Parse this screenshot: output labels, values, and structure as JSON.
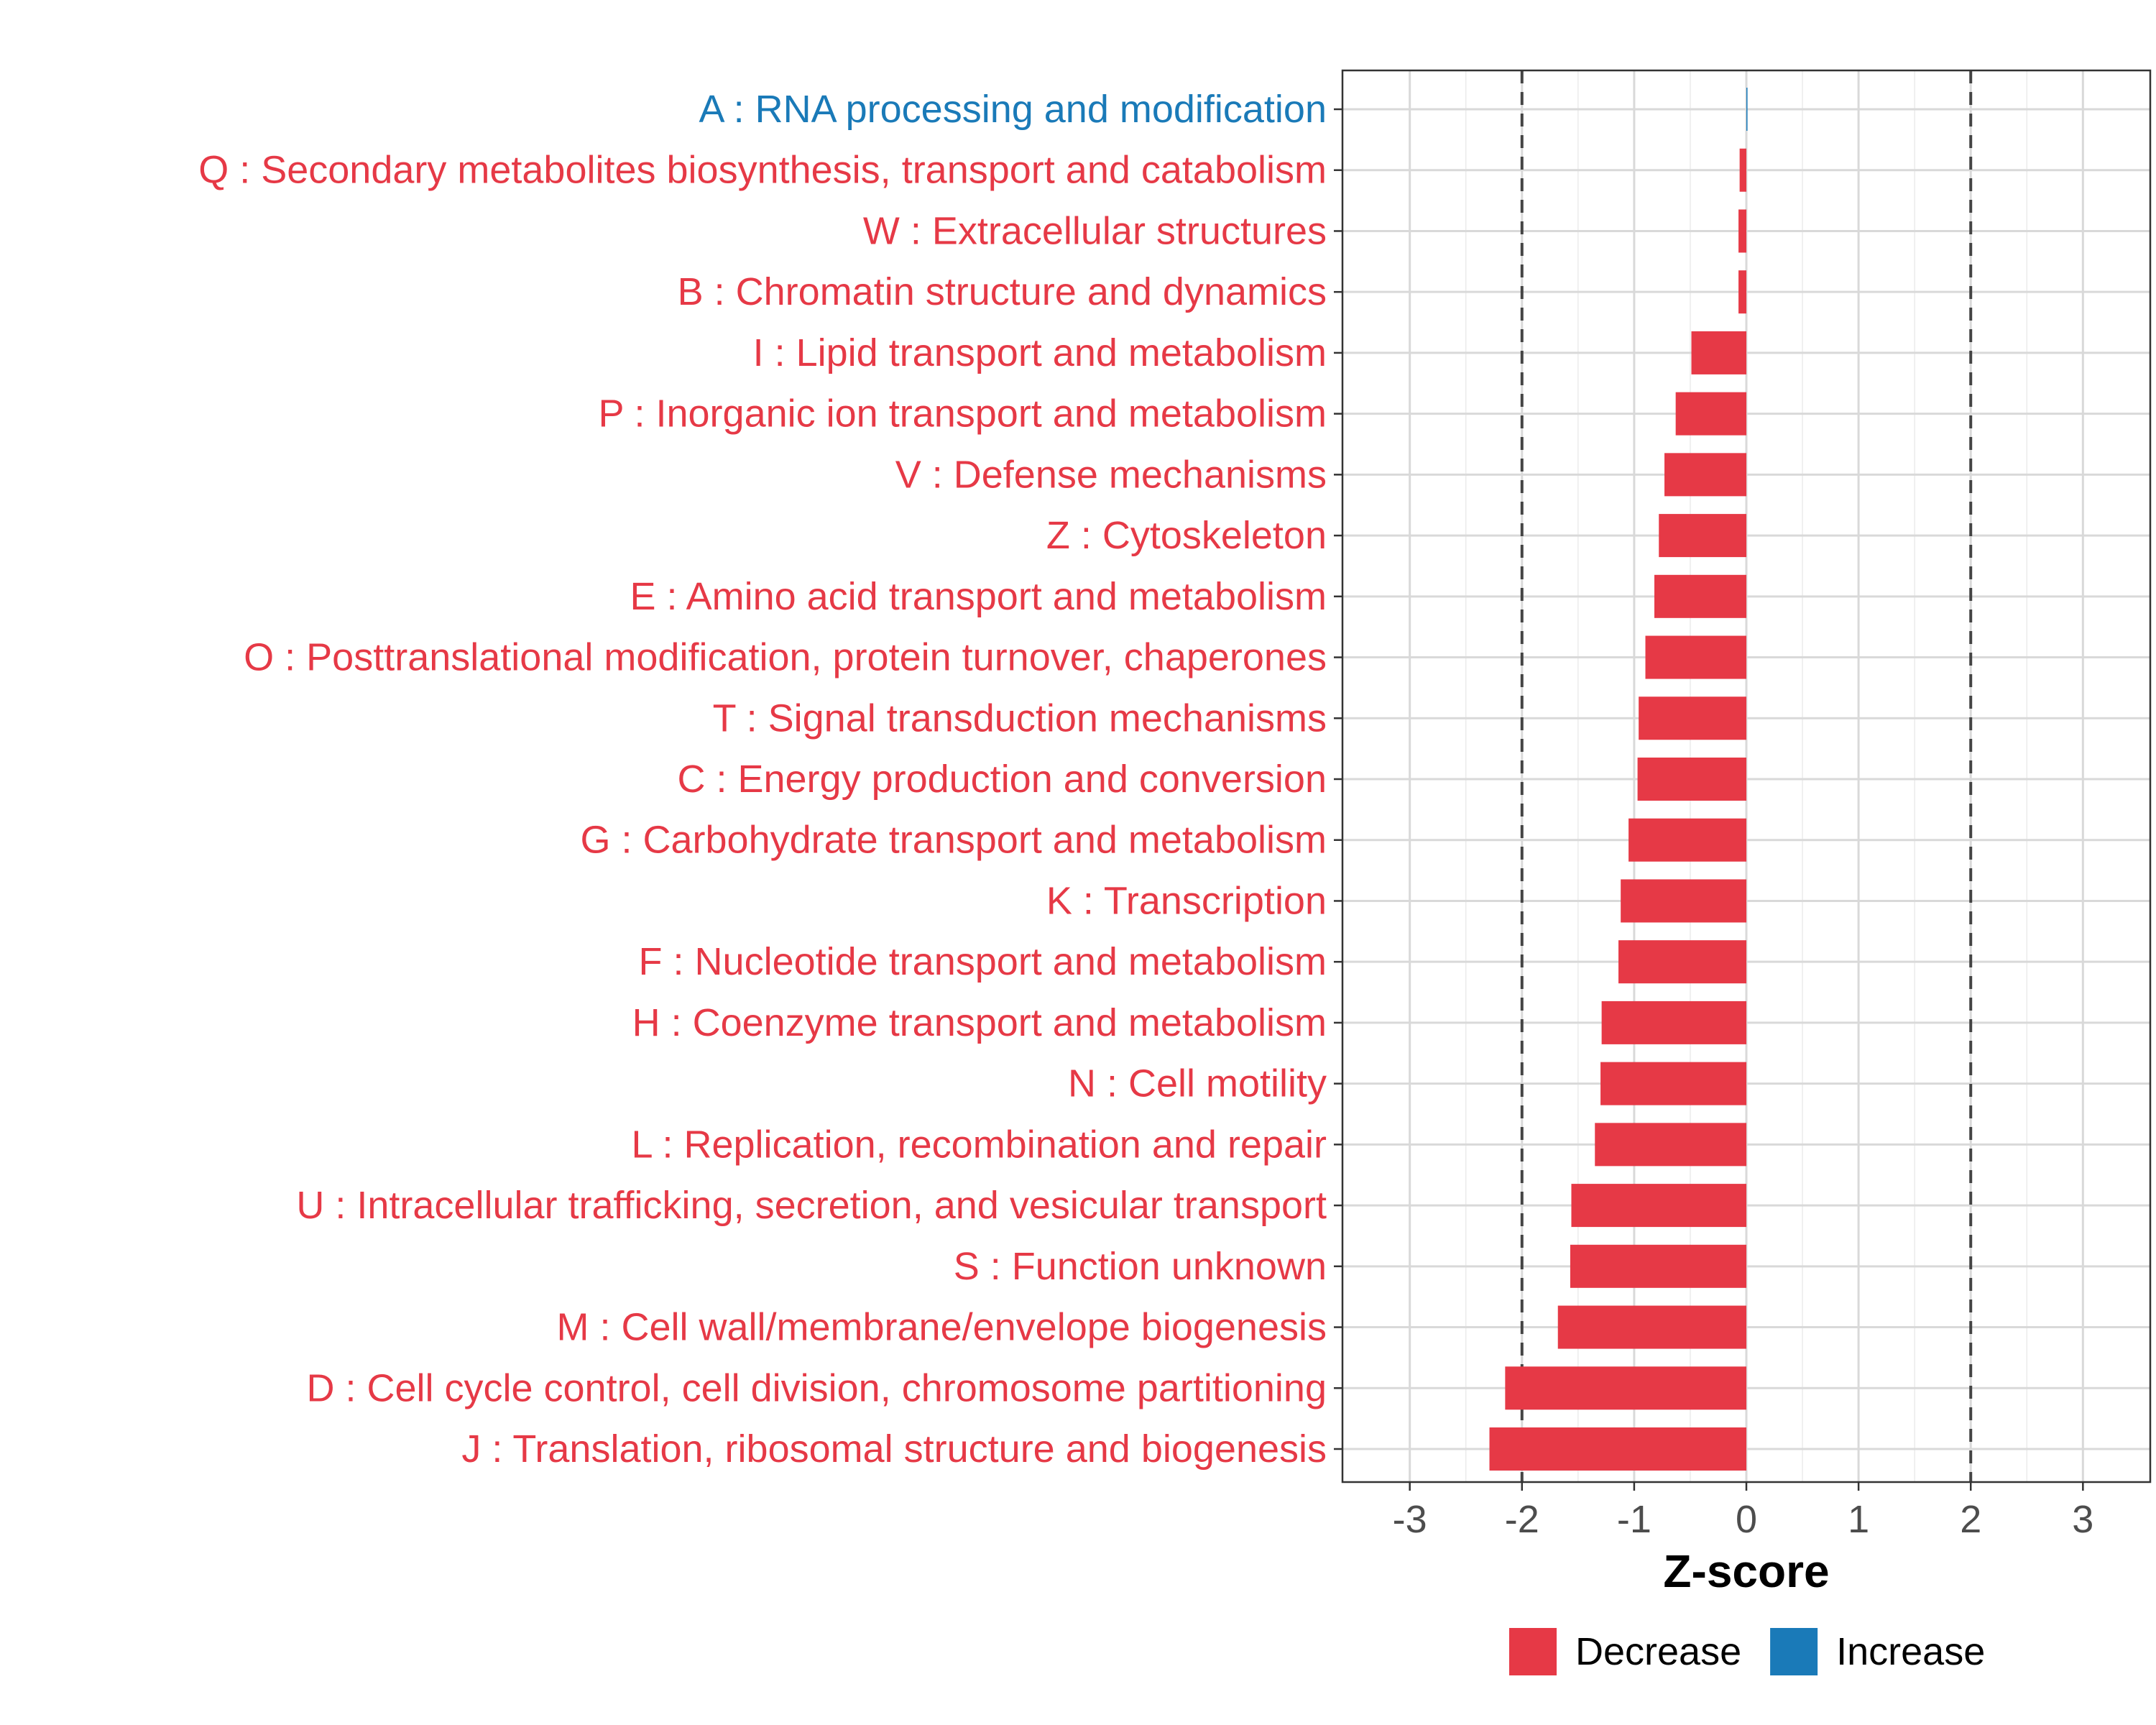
{
  "chart_data": {
    "type": "bar",
    "orientation": "horizontal",
    "title": "",
    "xlabel": "Z-score",
    "ylabel": "",
    "xlim": [
      -3.6,
      3.6
    ],
    "xticks": [
      -3,
      -2,
      -1,
      0,
      1,
      2,
      3
    ],
    "xtick_labels": [
      "-3",
      "-2",
      "-1",
      "0",
      "1",
      "2",
      "3"
    ],
    "reference_lines": [
      -2,
      2
    ],
    "grid": true,
    "legend_position": "bottom",
    "colors": {
      "Decrease": "#e63946",
      "Increase": "#1a7ab8"
    },
    "legend": [
      {
        "name": "Decrease",
        "color": "#e63946"
      },
      {
        "name": "Increase",
        "color": "#1a7ab8"
      }
    ],
    "categories": [
      "A : RNA processing and modification",
      "Q : Secondary metabolites biosynthesis, transport and catabolism",
      "W : Extracellular structures",
      "B : Chromatin structure and dynamics",
      "I : Lipid transport and metabolism",
      "P : Inorganic ion transport and metabolism",
      "V : Defense mechanisms",
      "Z : Cytoskeleton",
      "E : Amino acid transport and metabolism",
      "O : Posttranslational modification, protein turnover, chaperones",
      "T : Signal transduction mechanisms",
      "C : Energy production and conversion",
      "G : Carbohydrate transport and metabolism",
      "K : Transcription",
      "F : Nucleotide transport and metabolism",
      "H : Coenzyme transport and metabolism",
      "N : Cell motility",
      "L : Replication, recombination and repair",
      "U : Intracellular trafficking, secretion, and vesicular transport",
      "S : Function unknown",
      "M : Cell wall/membrane/envelope biogenesis",
      "D : Cell cycle control, cell division, chromosome partitioning",
      "J : Translation, ribosomal structure and biogenesis"
    ],
    "values": [
      0.01,
      -0.06,
      -0.07,
      -0.07,
      -0.49,
      -0.63,
      -0.73,
      -0.78,
      -0.82,
      -0.9,
      -0.96,
      -0.97,
      -1.05,
      -1.12,
      -1.14,
      -1.29,
      -1.3,
      -1.35,
      -1.56,
      -1.57,
      -1.68,
      -2.15,
      -2.29
    ],
    "groups": [
      "Increase",
      "Decrease",
      "Decrease",
      "Decrease",
      "Decrease",
      "Decrease",
      "Decrease",
      "Decrease",
      "Decrease",
      "Decrease",
      "Decrease",
      "Decrease",
      "Decrease",
      "Decrease",
      "Decrease",
      "Decrease",
      "Decrease",
      "Decrease",
      "Decrease",
      "Decrease",
      "Decrease",
      "Decrease",
      "Decrease"
    ]
  }
}
